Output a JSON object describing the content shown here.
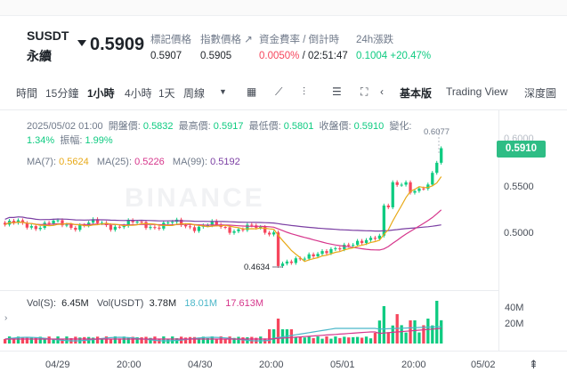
{
  "header": {
    "symbol": "SUSDT",
    "contract_type": "永續",
    "last_price": "0.5909",
    "mark_price_label": "標記價格",
    "mark_price": "0.5907",
    "index_price_label": "指數價格",
    "index_price": "0.5905",
    "index_arrow": "↗",
    "funding_label": "資金費率 / 倒計時",
    "funding_rate": "0.0050%",
    "funding_separator": "/",
    "countdown": "02:51:47",
    "change_label": "24h漲跌",
    "change_value": "0.1004 +20.47%"
  },
  "toolbar": {
    "time_label": "時間",
    "intervals": [
      "15分鐘",
      "1小時",
      "4小時",
      "1天",
      "周線"
    ],
    "active_interval": "1小時",
    "basic_label": "基本版",
    "tradingview_label": "Trading View",
    "depth_label": "深度圖"
  },
  "ohlc": {
    "date": "2025/05/02 01:00",
    "open_label": "開盤價:",
    "open": "0.5832",
    "high_label": "最高價:",
    "high": "0.5917",
    "low_label": "最低價:",
    "low": "0.5801",
    "close_label": "收盤價:",
    "close": "0.5910",
    "change_label": "變化:",
    "change": "1.34%",
    "amp_label": "振幅:",
    "amp": "1.99%"
  },
  "ma": {
    "ma7_label": "MA(7):",
    "ma7": "0.5624",
    "ma25_label": "MA(25):",
    "ma25": "0.5226",
    "ma99_label": "MA(99):",
    "ma99": "0.5192"
  },
  "volume": {
    "vol_s_label": "Vol(S):",
    "vol_s": "6.45M",
    "vol_usdt_label": "Vol(USDT)",
    "vol_usdt": "3.78M",
    "ma_a": "18.01M",
    "ma_b": "17.613M"
  },
  "chart_data": {
    "type": "candlestick",
    "y_ticks": [
      "0.6000",
      "0.5500",
      "0.5000"
    ],
    "current_price_tag": "0.5910",
    "high_marker": "0.6077",
    "low_marker": "0.4634",
    "vol_ticks": [
      "40M",
      "20M"
    ],
    "x_ticks": [
      "04/29",
      "20:00",
      "04/30",
      "20:00",
      "05/01",
      "20:00",
      "05/02"
    ],
    "watermark": "BINANCE",
    "colors": {
      "up": "#0ecb81",
      "down": "#f6465d",
      "ma7": "#e8a917",
      "ma25": "#d6368c",
      "ma99": "#7b3fa3"
    }
  }
}
